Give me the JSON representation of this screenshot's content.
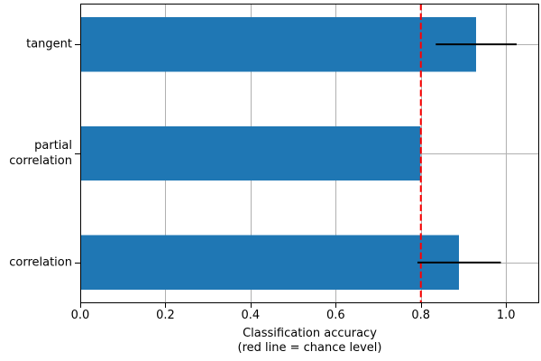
{
  "chart_data": {
    "type": "bar",
    "orientation": "horizontal",
    "title": "",
    "xlabel": "Classification accuracy\n(red line = chance level)",
    "ylabel": "",
    "categories": [
      "tangent",
      "partial\ncorrelation",
      "correlation"
    ],
    "values": [
      0.93,
      0.8,
      0.89
    ],
    "errors": [
      0.095,
      0,
      0.098
    ],
    "xticks": [
      0,
      0.2,
      0.4,
      0.6,
      0.8,
      1.0
    ],
    "xtick_labels": [
      "0.0",
      "0.2",
      "0.4",
      "0.6",
      "0.8",
      "1.0"
    ],
    "xlim": [
      0,
      1.078
    ],
    "grid": true,
    "legend": "none",
    "chance_level": 0.8,
    "colors": {
      "bar": "#1f77b4",
      "chance_line": "#ff0000",
      "error_bar": "#000000",
      "grid": "#b0b0b0",
      "axis": "#000000",
      "background": "#ffffff"
    }
  }
}
